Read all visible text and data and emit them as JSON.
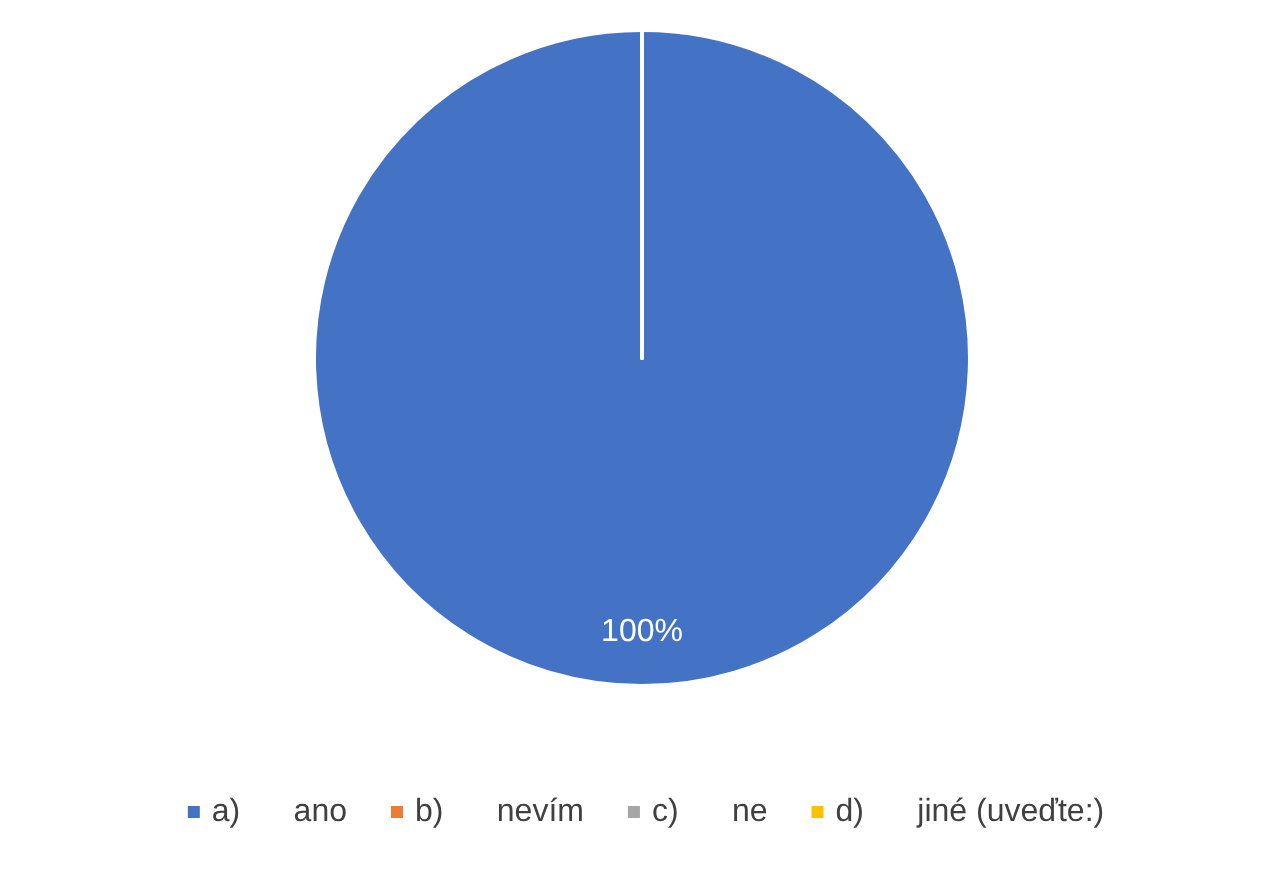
{
  "chart_data": {
    "type": "pie",
    "categories": [
      "a)      ano",
      "b)      nevím",
      "c)      ne",
      "d)      jiné (uveďte:)"
    ],
    "values": [
      100,
      0,
      0,
      0
    ],
    "colors": [
      "#4472c4",
      "#ed7d31",
      "#a5a5a5",
      "#ffc000"
    ],
    "value_labels": [
      "100%",
      null,
      null,
      null
    ],
    "legend": "bottom"
  }
}
